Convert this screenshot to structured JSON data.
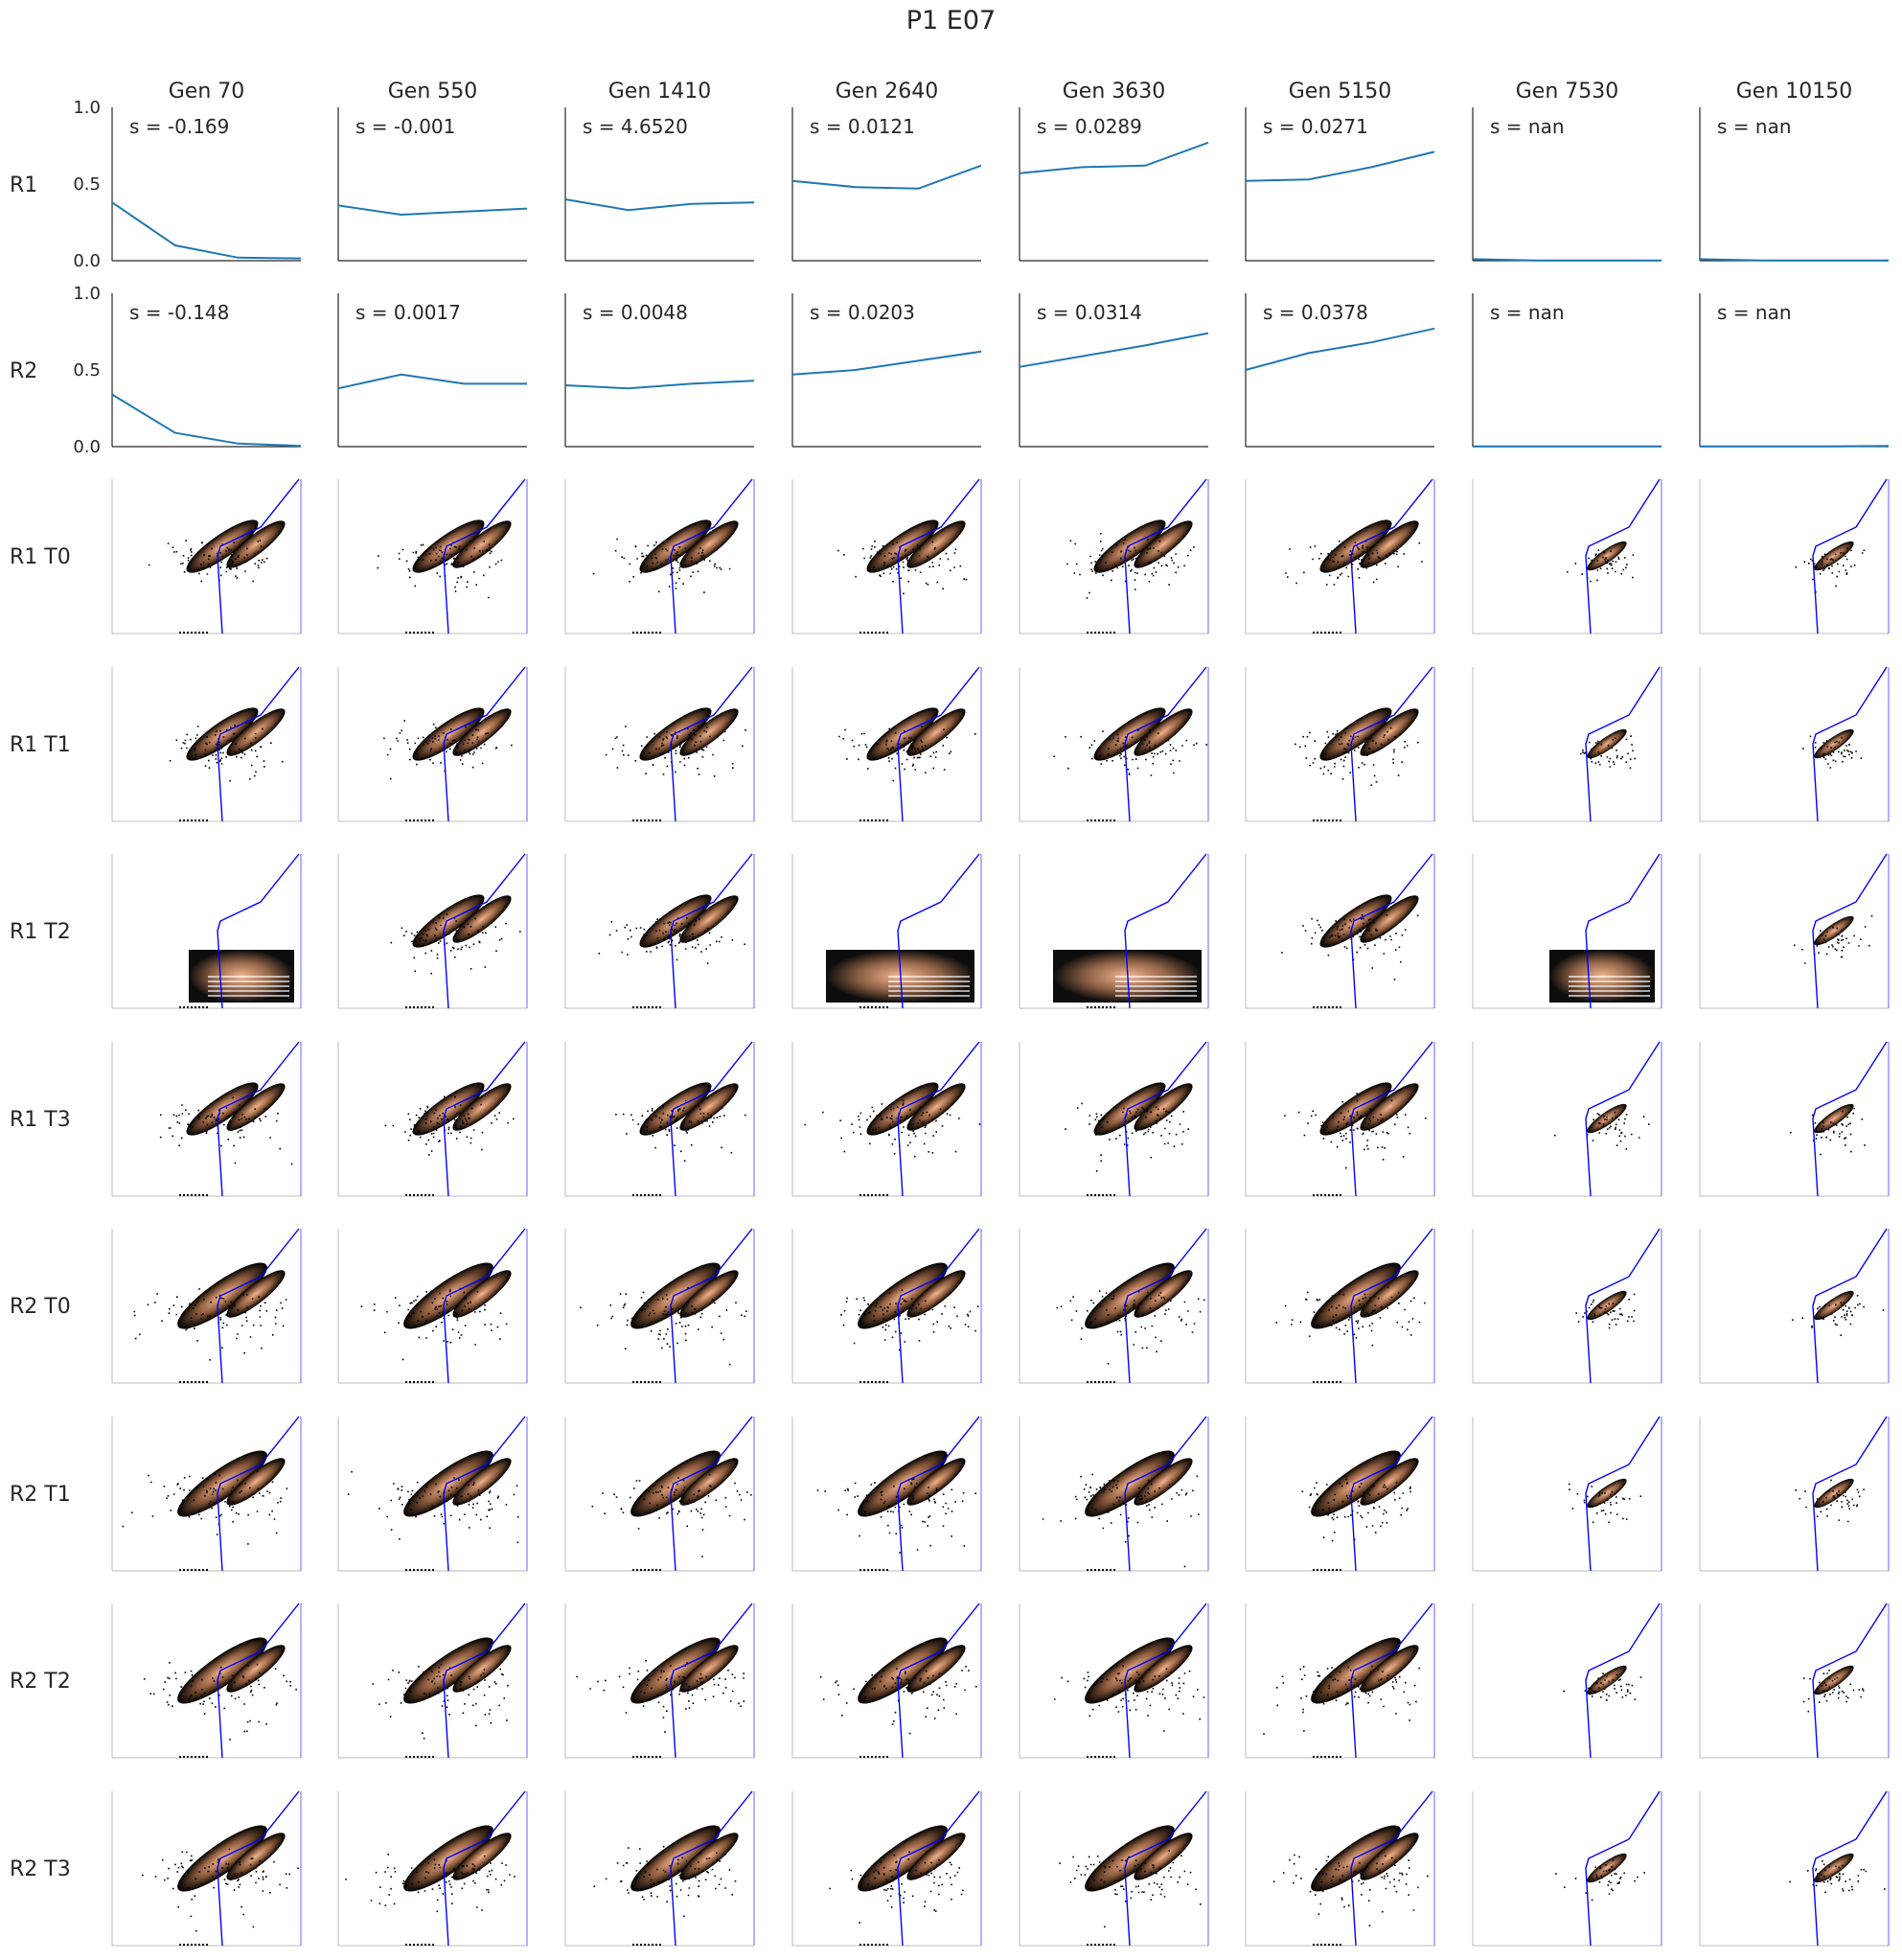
{
  "title": "P1 E07",
  "columns": [
    "Gen 70",
    "Gen 550",
    "Gen 1410",
    "Gen 2640",
    "Gen 3630",
    "Gen 5150",
    "Gen 7530",
    "Gen 10150"
  ],
  "line_rows": [
    "R1",
    "R2"
  ],
  "scatter_rows": [
    "R1 T0",
    "R1 T1",
    "R1 T2",
    "R1 T3",
    "R2 T0",
    "R2 T1",
    "R2 T2",
    "R2 T3"
  ],
  "colors": {
    "line": "#1f77b4",
    "gate": "#0000ff",
    "density_low": "#000000",
    "density_high": "#f2b38c",
    "axis": "#262626"
  },
  "chart_data": [
    {
      "type": "line",
      "row": "R1",
      "ylim": [
        0,
        1
      ],
      "yticks": [
        "0.0",
        "0.5",
        "1.0"
      ],
      "x": [
        0,
        1,
        2,
        3
      ],
      "panels": [
        {
          "column": "Gen 70",
          "s_label": "s = -0.169",
          "values": [
            0.38,
            0.1,
            0.02,
            0.015
          ]
        },
        {
          "column": "Gen 550",
          "s_label": "s = -0.001",
          "values": [
            0.36,
            0.3,
            0.32,
            0.34
          ]
        },
        {
          "column": "Gen 1410",
          "s_label": "s = 4.6520",
          "values": [
            0.4,
            0.33,
            0.37,
            0.38
          ]
        },
        {
          "column": "Gen 2640",
          "s_label": "s = 0.0121",
          "values": [
            0.52,
            0.48,
            0.47,
            0.62
          ]
        },
        {
          "column": "Gen 3630",
          "s_label": "s = 0.0289",
          "values": [
            0.57,
            0.61,
            0.62,
            0.77
          ]
        },
        {
          "column": "Gen 5150",
          "s_label": "s = 0.0271",
          "values": [
            0.52,
            0.53,
            0.61,
            0.71
          ]
        },
        {
          "column": "Gen 7530",
          "s_label": "s = nan",
          "values": [
            0.01,
            0.002,
            0.002,
            0.001
          ]
        },
        {
          "column": "Gen 10150",
          "s_label": "s = nan",
          "values": [
            0.01,
            0.002,
            0.002,
            0.001
          ]
        }
      ]
    },
    {
      "type": "line",
      "row": "R2",
      "ylim": [
        0,
        1
      ],
      "yticks": [
        "0.0",
        "0.5",
        "1.0"
      ],
      "x": [
        0,
        1,
        2,
        3
      ],
      "panels": [
        {
          "column": "Gen 70",
          "s_label": "s = -0.148",
          "values": [
            0.34,
            0.09,
            0.02,
            0.005
          ]
        },
        {
          "column": "Gen 550",
          "s_label": "s = 0.0017",
          "values": [
            0.38,
            0.47,
            0.41,
            0.41
          ]
        },
        {
          "column": "Gen 1410",
          "s_label": "s = 0.0048",
          "values": [
            0.4,
            0.38,
            0.41,
            0.43
          ]
        },
        {
          "column": "Gen 2640",
          "s_label": "s = 0.0203",
          "values": [
            0.47,
            0.5,
            0.56,
            0.62
          ]
        },
        {
          "column": "Gen 3630",
          "s_label": "s = 0.0314",
          "values": [
            0.52,
            0.59,
            0.66,
            0.74
          ]
        },
        {
          "column": "Gen 5150",
          "s_label": "s = 0.0378",
          "values": [
            0.5,
            0.61,
            0.68,
            0.77
          ]
        },
        {
          "column": "Gen 7530",
          "s_label": "s = nan",
          "values": [
            0.002,
            0.001,
            0.001,
            0.001
          ]
        },
        {
          "column": "Gen 10150",
          "s_label": "s = nan",
          "values": [
            0.002,
            0.001,
            0.001,
            0.005
          ]
        }
      ]
    },
    {
      "type": "heatmap",
      "description_kind": "2D density scatter with gating polygon",
      "rows": [
        "R1 T0",
        "R1 T1",
        "R1 T2",
        "R1 T3",
        "R2 T0",
        "R2 T1",
        "R2 T2",
        "R2 T3"
      ],
      "columns": [
        "Gen 70",
        "Gen 550",
        "Gen 1410",
        "Gen 2640",
        "Gen 3630",
        "Gen 5150",
        "Gen 7530",
        "Gen 10150"
      ]
    }
  ]
}
